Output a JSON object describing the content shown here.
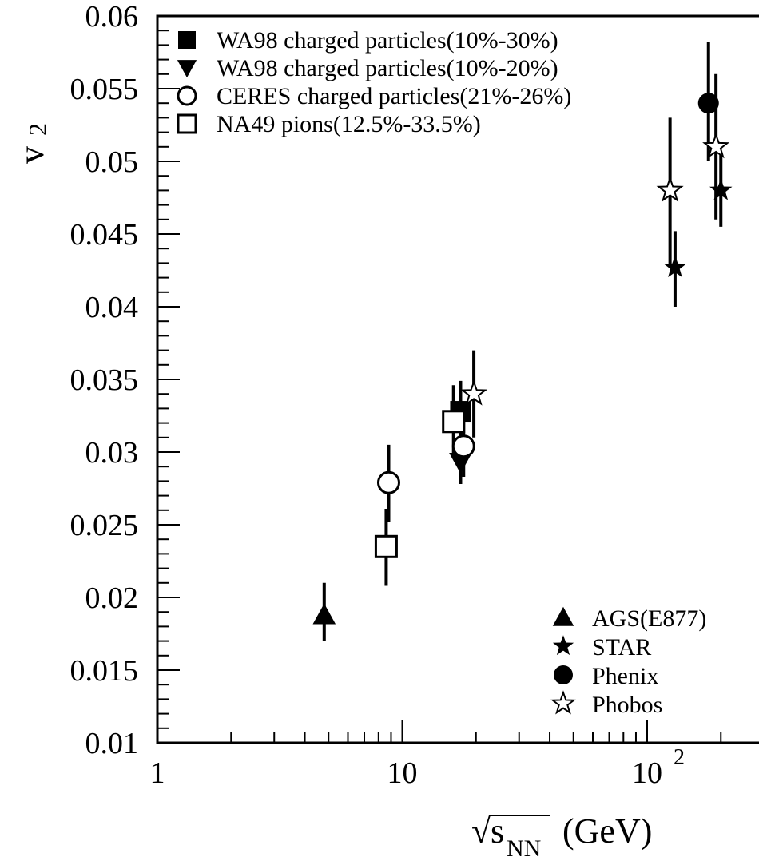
{
  "chart_data": {
    "type": "scatter",
    "x_scale": "log",
    "xlim": [
      1,
      250
    ],
    "ylim": [
      0.01,
      0.06
    ],
    "grid": false,
    "ylabel": {
      "main": "v",
      "sub": "2"
    },
    "xlabel": {
      "root": "√",
      "main": "s",
      "sub": "NN",
      "unit": "(GeV)"
    },
    "y_ticks": [
      "0.01",
      "0.015",
      "0.02",
      "0.025",
      "0.03",
      "0.035",
      "0.04",
      "0.045",
      "0.05",
      "0.055",
      "0.06"
    ],
    "y_tick_values": [
      0.01,
      0.015,
      0.02,
      0.025,
      0.03,
      0.035,
      0.04,
      0.045,
      0.05,
      0.055,
      0.06
    ],
    "x_ticks": [
      {
        "value": 1,
        "label": "1"
      },
      {
        "value": 10,
        "label": "10"
      },
      {
        "value": 100,
        "label": "10",
        "sup": "2"
      }
    ],
    "legend_top_left": [
      {
        "marker": "square-filled",
        "label": "WA98 charged particles(10%-30%)"
      },
      {
        "marker": "triangle-down-filled",
        "label": "WA98 charged particles(10%-20%)"
      },
      {
        "marker": "circle-open",
        "label": "CERES charged particles(21%-26%)"
      },
      {
        "marker": "square-open",
        "label": "NA49 pions(12.5%-33.5%)"
      }
    ],
    "legend_bottom_right": [
      {
        "marker": "triangle-up-filled",
        "label": "AGS(E877)"
      },
      {
        "marker": "star-filled",
        "label": "STAR"
      },
      {
        "marker": "circle-filled",
        "label": "Phenix"
      },
      {
        "marker": "star-open",
        "label": "Phobos"
      }
    ],
    "series": [
      {
        "name": "WA98 charged particles(10%-30%)",
        "marker": "square-filled",
        "points": [
          {
            "x": 17.3,
            "y": 0.0328,
            "yerr_low": 0.0303,
            "yerr_high": 0.0349
          }
        ]
      },
      {
        "name": "WA98 charged particles(10%-20%)",
        "marker": "triangle-down-filled",
        "points": [
          {
            "x": 17.3,
            "y": 0.0293,
            "yerr_low": 0.0278,
            "yerr_high": 0.0306
          }
        ]
      },
      {
        "name": "CERES charged particles(21%-26%)",
        "marker": "circle-open",
        "points": [
          {
            "x": 8.8,
            "y": 0.0279,
            "yerr_low": 0.0252,
            "yerr_high": 0.0305
          },
          {
            "x": 17.8,
            "y": 0.0304,
            "yerr_low": 0.0283,
            "yerr_high": 0.0328
          }
        ]
      },
      {
        "name": "NA49 pions(12.5%-33.5%)",
        "marker": "square-open",
        "points": [
          {
            "x": 8.6,
            "y": 0.0235,
            "yerr_low": 0.0208,
            "yerr_high": 0.0261
          },
          {
            "x": 16.2,
            "y": 0.0321,
            "yerr_low": 0.0296,
            "yerr_high": 0.0346
          }
        ]
      },
      {
        "name": "AGS(E877)",
        "marker": "triangle-up-filled",
        "points": [
          {
            "x": 4.8,
            "y": 0.0188,
            "yerr_low": 0.017,
            "yerr_high": 0.021
          }
        ]
      },
      {
        "name": "STAR",
        "marker": "star-filled",
        "points": [
          {
            "x": 130,
            "y": 0.0427,
            "yerr_low": 0.04,
            "yerr_high": 0.0452
          },
          {
            "x": 200,
            "y": 0.048,
            "yerr_low": 0.0455,
            "yerr_high": 0.0505
          }
        ]
      },
      {
        "name": "Phenix",
        "marker": "circle-filled",
        "points": [
          {
            "x": 178,
            "y": 0.054,
            "yerr_low": 0.05,
            "yerr_high": 0.0582
          }
        ]
      },
      {
        "name": "Phobos",
        "marker": "star-open",
        "points": [
          {
            "x": 19.6,
            "y": 0.034,
            "yerr_low": 0.031,
            "yerr_high": 0.037
          },
          {
            "x": 124,
            "y": 0.048,
            "yerr_low": 0.0428,
            "yerr_high": 0.053
          },
          {
            "x": 191,
            "y": 0.051,
            "yerr_low": 0.046,
            "yerr_high": 0.056
          }
        ]
      }
    ]
  }
}
